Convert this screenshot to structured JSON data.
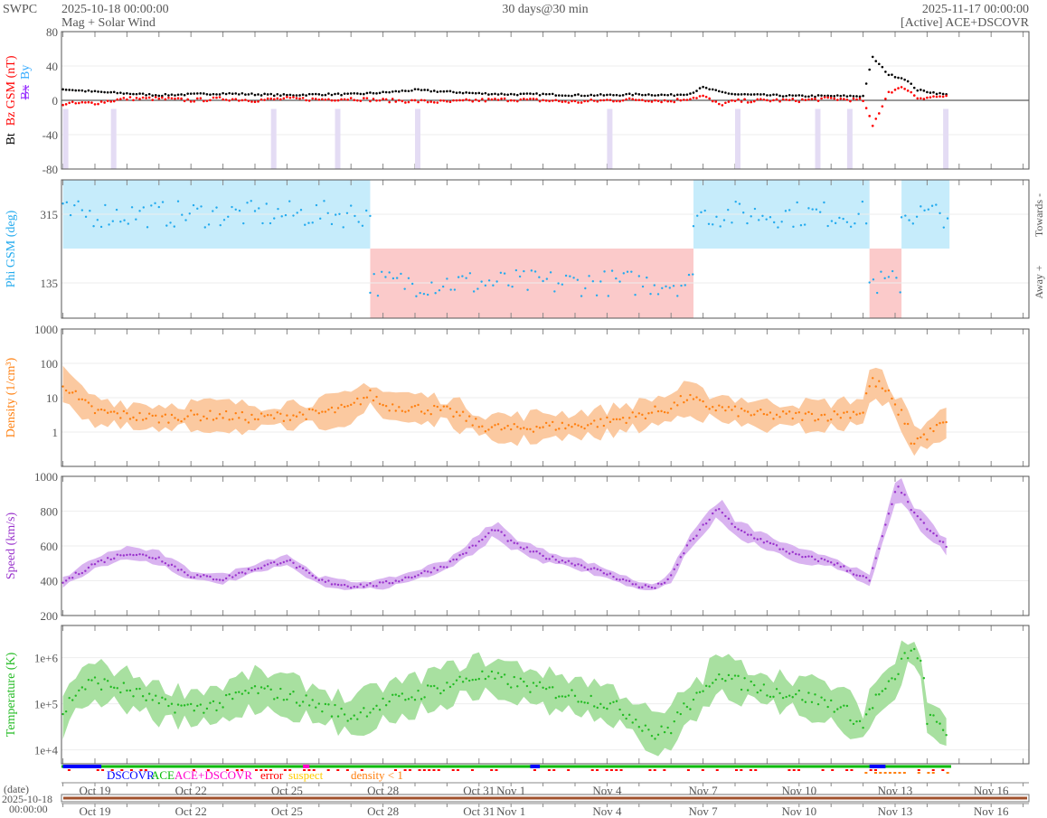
{
  "header": {
    "org": "SWPC",
    "start": "2025-10-18 00:00:00",
    "subtitle": "Mag + Solar Wind",
    "span": "30 days@30 min",
    "end": "2025-11-17 00:00:00",
    "source": "[Active] ACE+DSCOVR"
  },
  "colors": {
    "bt": "#000000",
    "bz": "#ff0000",
    "bx": "#9933ff",
    "by": "#33aaff",
    "phi": "#22aaee",
    "towards": "#c6ecfb",
    "away": "#fbcaca",
    "density": "#ff7f0e",
    "density_band": "#fbc9a0",
    "speed": "#9933cc",
    "speed_band": "#d9b3f0",
    "temp": "#22bb22",
    "temp_band": "#a8e0a0",
    "ace": "#00bb00",
    "dscovr": "#0000ff",
    "both": "#ff00cc",
    "error": "#ff0000",
    "suspect": "#ffcc00",
    "lowdens": "#ff7f0e"
  },
  "legend": {
    "dscovr": "DSCOVR",
    "ace": "ACE",
    "both": "ACE+DSCOVR",
    "error": "error",
    "suspect": "suspect",
    "lowdens": "density < 1"
  },
  "date_axis": {
    "label": "(date)",
    "date": "2025-10-18",
    "time": "00:00:00"
  },
  "chart_data": {
    "type": "line",
    "x_unit": "days since 2025-10-18 00:00",
    "xlim": [
      0,
      30.2
    ],
    "x_ticks": [
      {
        "day": 1,
        "label": "Oct 19"
      },
      {
        "day": 4,
        "label": "Oct 22"
      },
      {
        "day": 7,
        "label": "Oct 25"
      },
      {
        "day": 10,
        "label": "Oct 28"
      },
      {
        "day": 13,
        "label": "Oct 31"
      },
      {
        "day": 14,
        "label": "Nov 1"
      },
      {
        "day": 17,
        "label": "Nov 4"
      },
      {
        "day": 20,
        "label": "Nov 7"
      },
      {
        "day": 23,
        "label": "Nov 10"
      },
      {
        "day": 26,
        "label": "Nov 13"
      },
      {
        "day": 29,
        "label": "Nov 16"
      }
    ],
    "panels": [
      {
        "id": "mag",
        "ylabel_parts": [
          "Bt",
          "Bz GSM (nT)",
          "Bx",
          "By"
        ],
        "ylim": [
          -80,
          80
        ],
        "yticks": [
          "80",
          "40",
          "0",
          "-40",
          "-80"
        ],
        "ytick_values": [
          80,
          40,
          0,
          -40,
          -80
        ],
        "series": [
          {
            "name": "Bt",
            "points": [
              [
                0,
                13
              ],
              [
                1,
                10
              ],
              [
                2,
                8
              ],
              [
                3,
                6
              ],
              [
                4,
                7
              ],
              [
                5,
                8
              ],
              [
                6,
                7
              ],
              [
                7,
                6
              ],
              [
                8,
                7
              ],
              [
                9,
                7
              ],
              [
                10,
                9
              ],
              [
                11,
                12
              ],
              [
                12,
                10
              ],
              [
                13,
                8
              ],
              [
                14,
                7
              ],
              [
                15,
                7
              ],
              [
                16,
                6
              ],
              [
                17,
                6
              ],
              [
                18,
                7
              ],
              [
                19,
                6
              ],
              [
                19.6,
                8
              ],
              [
                20,
                15
              ],
              [
                20.5,
                10
              ],
              [
                21,
                7
              ],
              [
                22,
                6
              ],
              [
                23,
                5
              ],
              [
                24,
                5
              ],
              [
                25,
                5
              ],
              [
                25.3,
                50
              ],
              [
                25.8,
                30
              ],
              [
                26.3,
                25
              ],
              [
                26.7,
                12
              ],
              [
                27.7,
                6
              ]
            ]
          },
          {
            "name": "Bz",
            "points": [
              [
                0,
                -4
              ],
              [
                1,
                -3
              ],
              [
                2,
                2
              ],
              [
                3,
                2
              ],
              [
                4,
                0
              ],
              [
                5,
                2
              ],
              [
                6,
                0
              ],
              [
                7,
                2
              ],
              [
                8,
                1
              ],
              [
                9,
                2
              ],
              [
                10,
                0
              ],
              [
                11,
                -1
              ],
              [
                12,
                -2
              ],
              [
                13,
                0
              ],
              [
                14,
                1
              ],
              [
                15,
                0
              ],
              [
                16,
                -2
              ],
              [
                17,
                0
              ],
              [
                18,
                1
              ],
              [
                19,
                -1
              ],
              [
                20,
                5
              ],
              [
                20.5,
                -5
              ],
              [
                21,
                -1
              ],
              [
                22,
                0
              ],
              [
                23,
                0
              ],
              [
                24,
                2
              ],
              [
                25,
                0
              ],
              [
                25.3,
                -30
              ],
              [
                25.8,
                10
              ],
              [
                26.3,
                15
              ],
              [
                26.7,
                3
              ],
              [
                27.7,
                5
              ]
            ]
          }
        ]
      },
      {
        "id": "phi",
        "ylabel": "Phi GSM (deg)",
        "yticks": [
          "315",
          "135"
        ],
        "ytick_values": [
          315,
          135
        ],
        "right_labels": [
          "Towards -",
          "Away +"
        ],
        "sectors": [
          [
            0,
            9.6,
            "towards"
          ],
          [
            9.6,
            19.7,
            "away"
          ],
          [
            19.7,
            25.2,
            "towards"
          ],
          [
            25.2,
            26.2,
            "away"
          ],
          [
            26.2,
            27.7,
            "towards"
          ]
        ]
      },
      {
        "id": "density",
        "ylabel": "Density (1/cm³)",
        "scale": "log",
        "ylim": [
          0.1,
          1000
        ],
        "yticks": [
          "1000",
          "100",
          "10",
          "1"
        ],
        "ytick_values": [
          1000,
          100,
          10,
          1
        ],
        "points": [
          [
            0,
            25
          ],
          [
            0.5,
            8
          ],
          [
            1,
            4
          ],
          [
            2,
            3
          ],
          [
            3,
            2.5
          ],
          [
            4,
            3
          ],
          [
            5,
            3
          ],
          [
            6,
            2.5
          ],
          [
            7,
            3
          ],
          [
            8,
            3.5
          ],
          [
            9,
            5
          ],
          [
            9.6,
            12
          ],
          [
            10,
            6
          ],
          [
            11,
            5
          ],
          [
            12,
            4
          ],
          [
            13,
            1.5
          ],
          [
            14,
            1.2
          ],
          [
            15,
            1.5
          ],
          [
            16,
            1.5
          ],
          [
            17,
            2
          ],
          [
            18,
            3
          ],
          [
            19,
            5
          ],
          [
            19.5,
            10
          ],
          [
            20,
            6
          ],
          [
            21,
            4
          ],
          [
            22,
            3
          ],
          [
            23,
            3
          ],
          [
            24,
            3
          ],
          [
            25,
            4
          ],
          [
            25.3,
            30
          ],
          [
            26,
            5
          ],
          [
            26.5,
            0.5
          ],
          [
            27,
            0.8
          ],
          [
            27.7,
            2
          ]
        ]
      },
      {
        "id": "speed",
        "ylabel": "Speed (km/s)",
        "ylim": [
          200,
          1000
        ],
        "yticks": [
          "1000",
          "800",
          "600",
          "400",
          "200"
        ],
        "ytick_values": [
          1000,
          800,
          600,
          400,
          200
        ],
        "points": [
          [
            0,
            390
          ],
          [
            1,
            500
          ],
          [
            2,
            560
          ],
          [
            3,
            530
          ],
          [
            4,
            430
          ],
          [
            5,
            410
          ],
          [
            6,
            470
          ],
          [
            7,
            520
          ],
          [
            8,
            400
          ],
          [
            9,
            370
          ],
          [
            10,
            380
          ],
          [
            11,
            430
          ],
          [
            12,
            490
          ],
          [
            13,
            620
          ],
          [
            13.5,
            700
          ],
          [
            14,
            620
          ],
          [
            15,
            540
          ],
          [
            16,
            500
          ],
          [
            17,
            440
          ],
          [
            18,
            370
          ],
          [
            18.5,
            360
          ],
          [
            19,
            420
          ],
          [
            19.5,
            600
          ],
          [
            20.5,
            820
          ],
          [
            21,
            700
          ],
          [
            22,
            620
          ],
          [
            23,
            540
          ],
          [
            24,
            510
          ],
          [
            25,
            420
          ],
          [
            25.2,
            400
          ],
          [
            25.6,
            650
          ],
          [
            26,
            900
          ],
          [
            26.1,
            950
          ],
          [
            26.6,
            780
          ],
          [
            27.7,
            575
          ]
        ]
      },
      {
        "id": "temp",
        "ylabel": "Temperature (K)",
        "scale": "log",
        "ylim": [
          5000,
          5000000
        ],
        "yticks": [
          "1e+6",
          "1e+5",
          "1e+4"
        ],
        "ytick_values": [
          1000000,
          100000,
          10000
        ],
        "points": [
          [
            0,
            50000
          ],
          [
            0.5,
            200000
          ],
          [
            1,
            300000
          ],
          [
            2,
            200000
          ],
          [
            3,
            100000
          ],
          [
            4,
            80000
          ],
          [
            5,
            100000
          ],
          [
            6,
            200000
          ],
          [
            7,
            150000
          ],
          [
            8,
            90000
          ],
          [
            9,
            50000
          ],
          [
            10,
            100000
          ],
          [
            11,
            150000
          ],
          [
            12,
            250000
          ],
          [
            13,
            400000
          ],
          [
            14,
            300000
          ],
          [
            15,
            200000
          ],
          [
            16,
            150000
          ],
          [
            17,
            100000
          ],
          [
            18,
            40000
          ],
          [
            18.5,
            20000
          ],
          [
            19,
            30000
          ],
          [
            20,
            150000
          ],
          [
            20.5,
            500000
          ],
          [
            21,
            300000
          ],
          [
            22,
            200000
          ],
          [
            23,
            150000
          ],
          [
            24,
            100000
          ],
          [
            25,
            30000
          ],
          [
            25.5,
            150000
          ],
          [
            26,
            300000
          ],
          [
            26.5,
            1500000
          ],
          [
            27,
            50000
          ],
          [
            27.7,
            20000
          ]
        ]
      }
    ]
  }
}
